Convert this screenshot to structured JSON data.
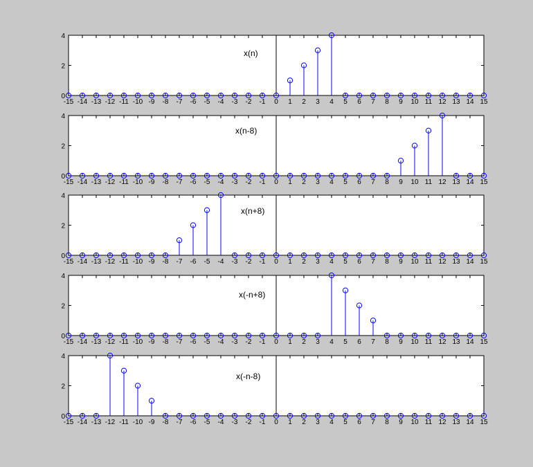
{
  "figure": {
    "background": "#c8c8c8",
    "axes_background": "#ffffff",
    "axis_color": "#000000",
    "stem_color": "#0000ff"
  },
  "chart_data": [
    {
      "type": "stem",
      "annotation": "x(n)",
      "x": [
        -15,
        -14,
        -13,
        -12,
        -11,
        -10,
        -9,
        -8,
        -7,
        -6,
        -5,
        -4,
        -3,
        -2,
        -1,
        0,
        1,
        2,
        3,
        4,
        5,
        6,
        7,
        8,
        9,
        10,
        11,
        12,
        13,
        14,
        15
      ],
      "y": [
        0,
        0,
        0,
        0,
        0,
        0,
        0,
        0,
        0,
        0,
        0,
        0,
        0,
        0,
        0,
        0,
        1,
        2,
        3,
        4,
        0,
        0,
        0,
        0,
        0,
        0,
        0,
        0,
        0,
        0,
        0
      ],
      "xlim": [
        -15,
        15
      ],
      "ylim": [
        0,
        4
      ],
      "xticks": [
        -15,
        -14,
        -13,
        -12,
        -11,
        -10,
        -9,
        -8,
        -7,
        -6,
        -5,
        -4,
        -3,
        -2,
        -1,
        0,
        1,
        2,
        3,
        4,
        5,
        6,
        7,
        8,
        9,
        10,
        11,
        12,
        13,
        14,
        15
      ],
      "yticks": [
        0,
        2,
        4
      ]
    },
    {
      "type": "stem",
      "annotation": "x(n-8)",
      "x": [
        -15,
        -14,
        -13,
        -12,
        -11,
        -10,
        -9,
        -8,
        -7,
        -6,
        -5,
        -4,
        -3,
        -2,
        -1,
        0,
        1,
        2,
        3,
        4,
        5,
        6,
        7,
        8,
        9,
        10,
        11,
        12,
        13,
        14,
        15
      ],
      "y": [
        0,
        0,
        0,
        0,
        0,
        0,
        0,
        0,
        0,
        0,
        0,
        0,
        0,
        0,
        0,
        0,
        0,
        0,
        0,
        0,
        0,
        0,
        0,
        0,
        1,
        2,
        3,
        4,
        0,
        0,
        0
      ],
      "xlim": [
        -15,
        15
      ],
      "ylim": [
        0,
        4
      ],
      "xticks": [
        -15,
        -14,
        -13,
        -12,
        -11,
        -10,
        -9,
        -8,
        -7,
        -6,
        -5,
        -4,
        -3,
        -2,
        -1,
        0,
        1,
        2,
        3,
        4,
        5,
        6,
        7,
        8,
        9,
        10,
        11,
        12,
        13,
        14,
        15
      ],
      "yticks": [
        0,
        2,
        4
      ]
    },
    {
      "type": "stem",
      "annotation": "x(n+8)",
      "x": [
        -15,
        -14,
        -13,
        -12,
        -11,
        -10,
        -9,
        -8,
        -7,
        -6,
        -5,
        -4,
        -3,
        -2,
        -1,
        0,
        1,
        2,
        3,
        4,
        5,
        6,
        7,
        8,
        9,
        10,
        11,
        12,
        13,
        14,
        15
      ],
      "y": [
        0,
        0,
        0,
        0,
        0,
        0,
        0,
        0,
        1,
        2,
        3,
        4,
        0,
        0,
        0,
        0,
        0,
        0,
        0,
        0,
        0,
        0,
        0,
        0,
        0,
        0,
        0,
        0,
        0,
        0,
        0
      ],
      "xlim": [
        -15,
        15
      ],
      "ylim": [
        0,
        4
      ],
      "xticks": [
        -15,
        -14,
        -13,
        -12,
        -11,
        -10,
        -9,
        -8,
        -7,
        -6,
        -5,
        -4,
        -3,
        -2,
        -1,
        0,
        1,
        2,
        3,
        4,
        5,
        6,
        7,
        8,
        9,
        10,
        11,
        12,
        13,
        14,
        15
      ],
      "yticks": [
        0,
        2,
        4
      ]
    },
    {
      "type": "stem",
      "annotation": "x(-n+8)",
      "x": [
        -15,
        -14,
        -13,
        -12,
        -11,
        -10,
        -9,
        -8,
        -7,
        -6,
        -5,
        -4,
        -3,
        -2,
        -1,
        0,
        1,
        2,
        3,
        4,
        5,
        6,
        7,
        8,
        9,
        10,
        11,
        12,
        13,
        14,
        15
      ],
      "y": [
        0,
        0,
        0,
        0,
        0,
        0,
        0,
        0,
        0,
        0,
        0,
        0,
        0,
        0,
        0,
        0,
        0,
        0,
        0,
        4,
        3,
        2,
        1,
        0,
        0,
        0,
        0,
        0,
        0,
        0,
        0
      ],
      "xlim": [
        -15,
        15
      ],
      "ylim": [
        0,
        4
      ],
      "xticks": [
        -15,
        -14,
        -13,
        -12,
        -11,
        -10,
        -9,
        -8,
        -7,
        -6,
        -5,
        -4,
        -3,
        -2,
        -1,
        0,
        1,
        2,
        3,
        4,
        5,
        6,
        7,
        8,
        9,
        10,
        11,
        12,
        13,
        14,
        15
      ],
      "yticks": [
        0,
        2,
        4
      ]
    },
    {
      "type": "stem",
      "annotation": "x(-n-8)",
      "x": [
        -15,
        -14,
        -13,
        -12,
        -11,
        -10,
        -9,
        -8,
        -7,
        -6,
        -5,
        -4,
        -3,
        -2,
        -1,
        0,
        1,
        2,
        3,
        4,
        5,
        6,
        7,
        8,
        9,
        10,
        11,
        12,
        13,
        14,
        15
      ],
      "y": [
        0,
        0,
        0,
        4,
        3,
        2,
        1,
        0,
        0,
        0,
        0,
        0,
        0,
        0,
        0,
        0,
        0,
        0,
        0,
        0,
        0,
        0,
        0,
        0,
        0,
        0,
        0,
        0,
        0,
        0,
        0
      ],
      "xlim": [
        -15,
        15
      ],
      "ylim": [
        0,
        4
      ],
      "xticks": [
        -15,
        -14,
        -13,
        -12,
        -11,
        -10,
        -9,
        -8,
        -7,
        -6,
        -5,
        -4,
        -3,
        -2,
        -1,
        0,
        1,
        2,
        3,
        4,
        5,
        6,
        7,
        8,
        9,
        10,
        11,
        12,
        13,
        14,
        15
      ],
      "yticks": [
        0,
        2,
        4
      ]
    }
  ]
}
